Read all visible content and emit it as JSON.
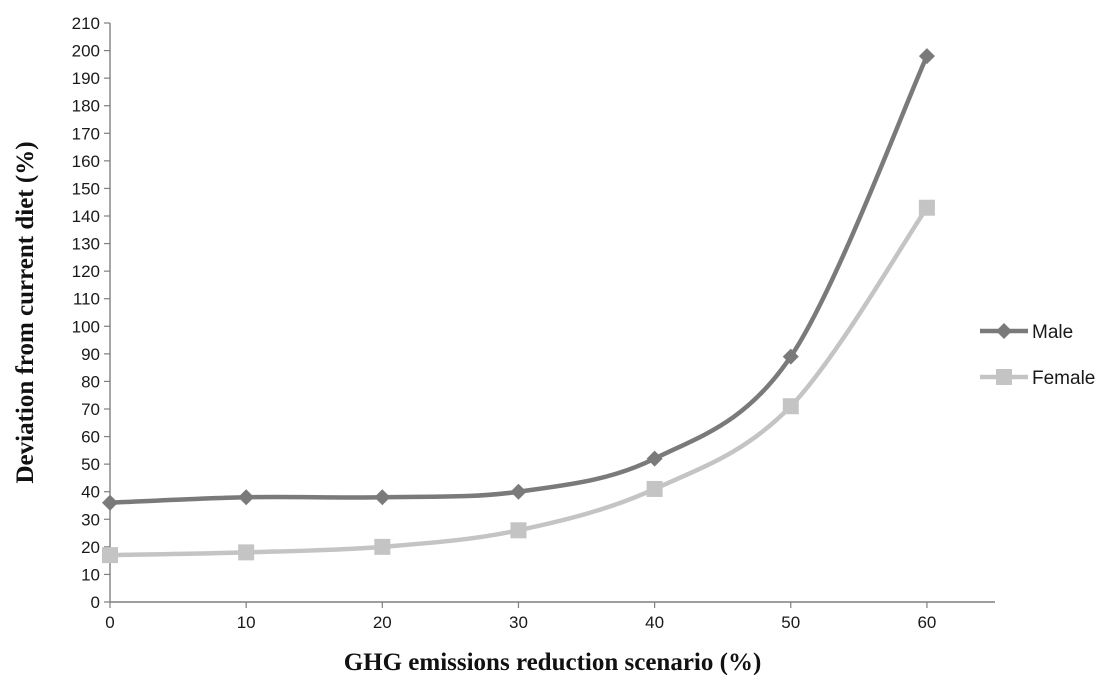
{
  "chart_data": {
    "type": "line",
    "title": "",
    "xlabel": "GHG emissions reduction scenario (%)",
    "ylabel": "Deviation from current diet (%)",
    "x": [
      0,
      10,
      20,
      30,
      40,
      50,
      60
    ],
    "xlim": [
      0,
      65
    ],
    "ylim": [
      0,
      210
    ],
    "x_ticks": [
      0,
      10,
      20,
      30,
      40,
      50,
      60
    ],
    "y_ticks": [
      0,
      10,
      20,
      30,
      40,
      50,
      60,
      70,
      80,
      90,
      100,
      110,
      120,
      130,
      140,
      150,
      160,
      170,
      180,
      190,
      200,
      210
    ],
    "grid": false,
    "legend_position": "right",
    "series": [
      {
        "name": "Male",
        "values": [
          36,
          38,
          38,
          40,
          52,
          89,
          198
        ],
        "color": "#7a7a7a",
        "marker": "diamond"
      },
      {
        "name": "Female",
        "values": [
          17,
          18,
          20,
          26,
          41,
          71,
          143
        ],
        "color": "#c4c4c4",
        "marker": "square"
      }
    ]
  }
}
